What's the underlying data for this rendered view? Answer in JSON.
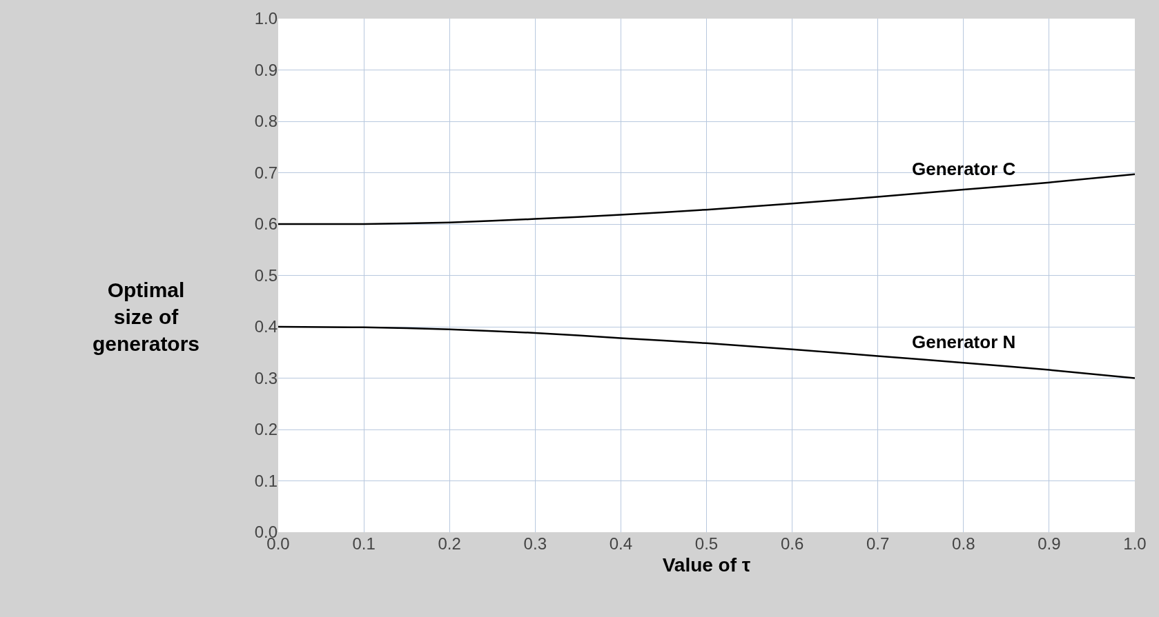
{
  "chart_data": {
    "type": "line",
    "xlabel": "Value of τ",
    "ylabel": "Optimal size of generators",
    "x": [
      0,
      0.1,
      0.2,
      0.3,
      0.4,
      0.5,
      0.6,
      0.7,
      0.8,
      0.9,
      1.0
    ],
    "series": [
      {
        "name": "Generator C",
        "color": "#000000",
        "values": [
          0.6,
          0.6,
          0.603,
          0.61,
          0.618,
          0.628,
          0.64,
          0.653,
          0.667,
          0.681,
          0.697
        ]
      },
      {
        "name": "Generator N",
        "color": "#000000",
        "values": [
          0.4,
          0.399,
          0.395,
          0.388,
          0.378,
          0.368,
          0.356,
          0.343,
          0.33,
          0.316,
          0.3
        ]
      }
    ],
    "xlim": [
      0,
      1
    ],
    "ylim": [
      0,
      1
    ],
    "xticks": [
      {
        "value": 0,
        "label": "0.0"
      },
      {
        "value": 0.1,
        "label": "0.1"
      },
      {
        "value": 0.2,
        "label": "0.2"
      },
      {
        "value": 0.3,
        "label": "0.3"
      },
      {
        "value": 0.4,
        "label": "0.4"
      },
      {
        "value": 0.5,
        "label": "0.5"
      },
      {
        "value": 0.6,
        "label": "0.6"
      },
      {
        "value": 0.7,
        "label": "0.7"
      },
      {
        "value": 0.8,
        "label": "0.8"
      },
      {
        "value": 0.9,
        "label": "0.9"
      },
      {
        "value": 1,
        "label": "1.0"
      }
    ],
    "yticks": [
      {
        "value": 0,
        "label": "0.0"
      },
      {
        "value": 0.1,
        "label": "0.1"
      },
      {
        "value": 0.2,
        "label": "0.2"
      },
      {
        "value": 0.3,
        "label": "0.3"
      },
      {
        "value": 0.4,
        "label": "0.4"
      },
      {
        "value": 0.5,
        "label": "0.5"
      },
      {
        "value": 0.6,
        "label": "0.6"
      },
      {
        "value": 0.7,
        "label": "0.7"
      },
      {
        "value": 0.8,
        "label": "0.8"
      },
      {
        "value": 0.9,
        "label": "0.9"
      },
      {
        "value": 1,
        "label": "1.0"
      }
    ],
    "grid": true,
    "legend": false,
    "marker": "none",
    "line_style": "solid"
  }
}
